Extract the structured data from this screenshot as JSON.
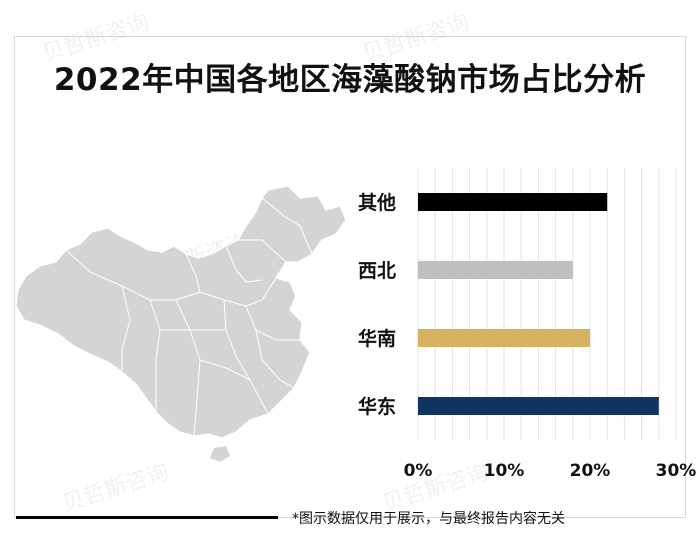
{
  "title": "2022年中国各地区海藻酸钠市场占比分析",
  "footnote": "*图示数据仅用于展示，与最终报告内容无关",
  "watermark": "贝哲斯咨询",
  "chart_data": {
    "type": "bar",
    "orientation": "horizontal",
    "categories": [
      "其他",
      "西北",
      "华南",
      "华东"
    ],
    "values": [
      22,
      18,
      20,
      28
    ],
    "unit": "%",
    "colors": [
      "#000000",
      "#bfbfbf",
      "#d4b25e",
      "#0f3461"
    ],
    "xlim": [
      0,
      30
    ],
    "xticks": [
      "0%",
      "10%",
      "20%",
      "30%"
    ],
    "grid": true,
    "title": "2022年中国各地区海藻酸钠市场占比分析",
    "xlabel": "",
    "ylabel": ""
  }
}
